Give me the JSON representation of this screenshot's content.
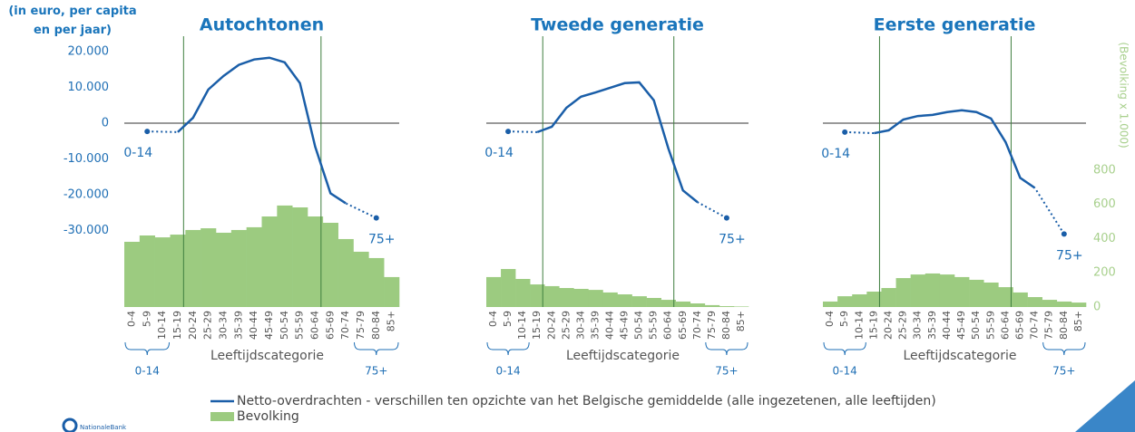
{
  "chart_data": [
    {
      "type": "combo",
      "title": "Autochtonen",
      "xlabel": "Leeftijdscategorie",
      "ylabel": "(in euro, per capita en per jaar)",
      "categories": [
        "0-4",
        "5-9",
        "10-14",
        "15-19",
        "20-24",
        "25-29",
        "30-34",
        "35-39",
        "40-44",
        "45-49",
        "50-54",
        "55-59",
        "60-64",
        "65-69",
        "70-74",
        "75-79",
        "80-84",
        "85+"
      ],
      "series": [
        {
          "name": "Netto-overdrachten - verschillen ten opzichte van het Belgische gemiddelde (alle ingezetenen, alle leeftijden)",
          "kind": "line",
          "color": "#1a5ea8",
          "values": [
            null,
            null,
            null,
            -2500,
            1500,
            9400,
            13200,
            16300,
            17800,
            18300,
            17000,
            11200,
            -6600,
            -19600,
            -22400,
            null,
            null,
            null
          ]
        },
        {
          "name": "Bevolking",
          "kind": "bar",
          "axis": "y2",
          "color": "#9ccb80",
          "values": [
            381,
            418,
            407,
            423,
            450,
            460,
            434,
            450,
            466,
            529,
            593,
            582,
            529,
            492,
            397,
            323,
            286,
            175
          ]
        }
      ],
      "annotations": [
        {
          "label": "0-14",
          "value": -2300
        },
        {
          "label": "75+",
          "value": -26500
        }
      ],
      "ylim": [
        -51400,
        20000
      ],
      "yticks": [
        {
          "value": 20000,
          "label": "20.000"
        },
        {
          "value": 10000,
          "label": "10.000"
        },
        0,
        {
          "value": -10000,
          "label": "-10.000"
        },
        {
          "value": -20000,
          "label": "-20.000"
        },
        {
          "value": -30000,
          "label": "-30.000"
        }
      ],
      "y2lim": [
        0,
        1492
      ]
    },
    {
      "type": "combo",
      "title": "Tweede generatie",
      "xlabel": "Leeftijdscategorie",
      "categories": [
        "0-4",
        "5-9",
        "10-14",
        "15-19",
        "20-24",
        "25-29",
        "30-34",
        "35-39",
        "40-44",
        "45-49",
        "50-54",
        "55-59",
        "60-64",
        "65-69",
        "70-74",
        "75-79",
        "80-84",
        "85+"
      ],
      "series": [
        {
          "kind": "line",
          "color": "#1a5ea8",
          "values": [
            null,
            null,
            null,
            -2500,
            -1000,
            4300,
            7400,
            8600,
            9900,
            11200,
            11400,
            6400,
            -7100,
            -18800,
            -22100,
            null,
            null,
            null
          ]
        },
        {
          "kind": "bar",
          "axis": "y2",
          "color": "#9ccb80",
          "values": [
            175,
            222,
            164,
            132,
            122,
            111,
            106,
            100,
            85,
            74,
            63,
            53,
            42,
            32,
            21,
            11,
            5,
            3
          ]
        }
      ],
      "annotations": [
        {
          "label": "0-14",
          "value": -2300
        },
        {
          "label": "75+",
          "value": -26500
        }
      ],
      "ylim": [
        -51400,
        20000
      ],
      "y2lim": [
        0,
        1492
      ]
    },
    {
      "type": "combo",
      "title": "Eerste generatie",
      "xlabel": "Leeftijdscategorie",
      "y2label": "(Bevolking x 1.000)",
      "categories": [
        "0-4",
        "5-9",
        "10-14",
        "15-19",
        "20-24",
        "25-29",
        "30-34",
        "35-39",
        "40-44",
        "45-49",
        "50-54",
        "55-59",
        "60-64",
        "65-69",
        "70-74",
        "75-79",
        "80-84",
        "85+"
      ],
      "series": [
        {
          "kind": "line",
          "color": "#1a5ea8",
          "values": [
            null,
            null,
            null,
            -2800,
            -2000,
            1000,
            2000,
            2300,
            3100,
            3600,
            3100,
            1300,
            -5300,
            -15300,
            -18100,
            null,
            null,
            null
          ]
        },
        {
          "kind": "bar",
          "axis": "y2",
          "color": "#9ccb80",
          "values": [
            32,
            63,
            74,
            90,
            111,
            169,
            190,
            196,
            190,
            175,
            159,
            143,
            116,
            85,
            58,
            42,
            32,
            26
          ]
        }
      ],
      "annotations": [
        {
          "label": "0-14",
          "value": -2500
        },
        {
          "label": "75+",
          "value": -31000
        }
      ],
      "ylim": [
        -51400,
        20000
      ],
      "y2lim": [
        0,
        1492
      ],
      "y2ticks": [
        0,
        200,
        400,
        600,
        800
      ]
    }
  ]
}
